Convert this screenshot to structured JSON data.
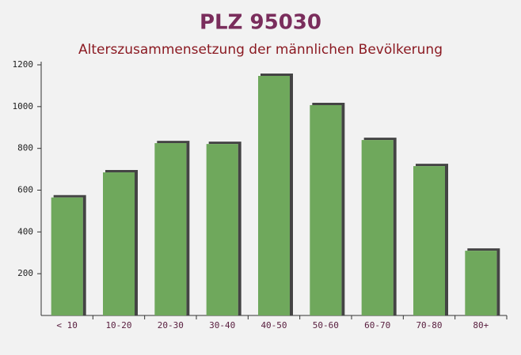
{
  "chart_data": {
    "type": "bar",
    "title": "PLZ 95030",
    "subtitle": "Alterszusammensetzung der männlichen Bevölkerung",
    "categories": [
      "< 10",
      "10-20",
      "20-30",
      "30-40",
      "40-50",
      "50-60",
      "60-70",
      "70-80",
      "80+"
    ],
    "values": [
      565,
      685,
      825,
      821,
      1147,
      1007,
      840,
      715,
      310
    ],
    "color": "#6fa85c",
    "ylim": [
      0,
      1200
    ],
    "yticks": [
      200,
      400,
      600,
      800,
      1000,
      1200
    ],
    "grid": false
  }
}
